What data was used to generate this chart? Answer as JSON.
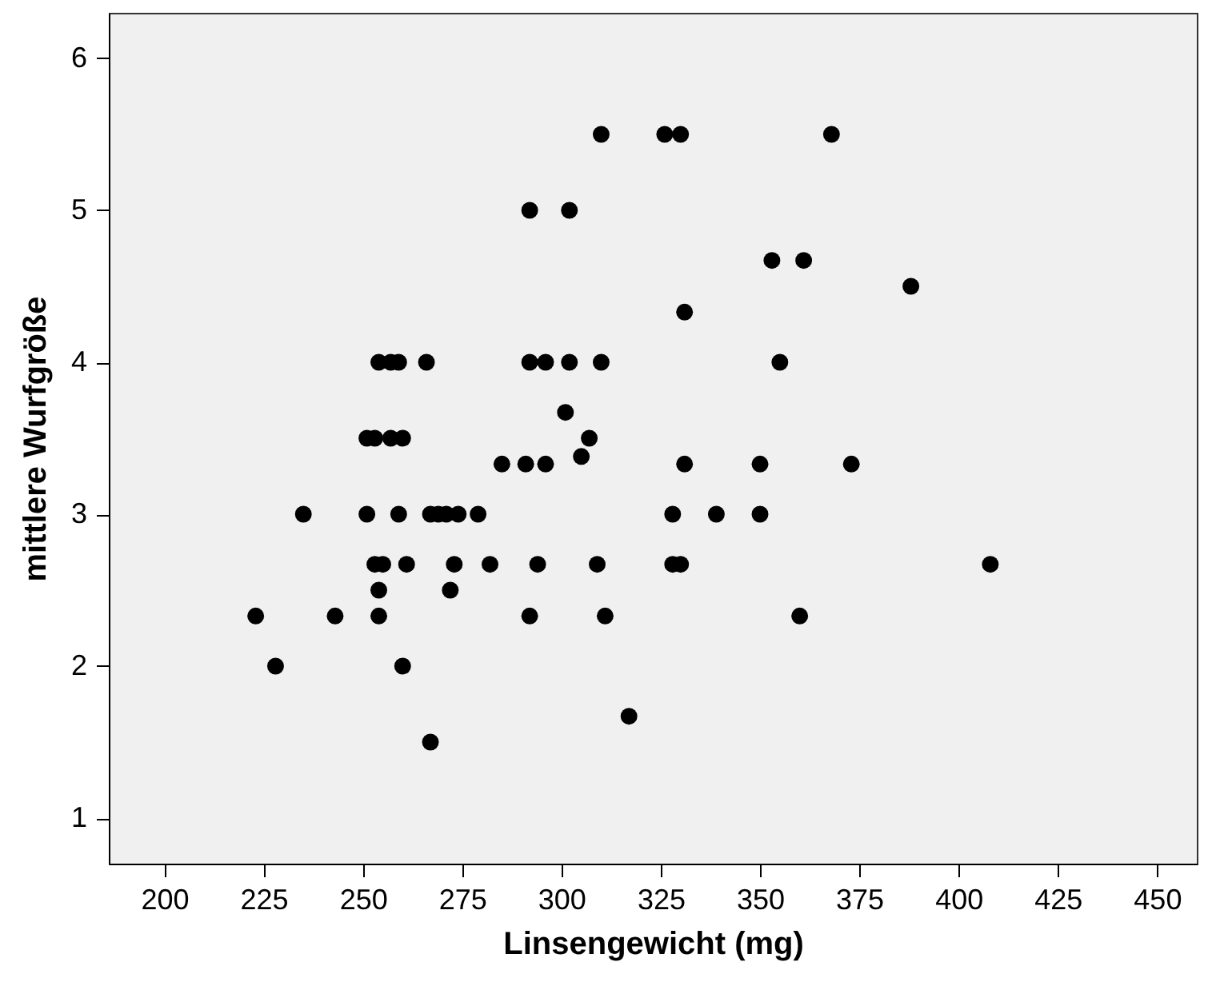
{
  "chart_data": {
    "type": "scatter",
    "xlabel": "Linsengewicht (mg)",
    "ylabel": "mittlere Wurfgröße",
    "x": [
      310,
      326,
      330,
      368,
      292,
      302,
      353,
      361,
      388,
      331,
      254,
      257,
      259,
      266,
      292,
      296,
      302,
      310,
      355,
      301,
      251,
      253,
      257,
      260,
      307,
      305,
      285,
      291,
      296,
      331,
      350,
      373,
      235,
      251,
      259,
      267,
      269,
      271,
      274,
      279,
      328,
      339,
      350,
      253,
      255,
      261,
      273,
      282,
      294,
      309,
      328,
      330,
      408,
      254,
      272,
      223,
      243,
      254,
      292,
      311,
      360,
      228,
      260,
      317,
      267
    ],
    "series": [
      {
        "color": "#000000",
        "values": [
          5.5,
          5.5,
          5.5,
          5.5,
          5,
          5,
          4.67,
          4.67,
          4.5,
          4.33,
          4,
          4,
          4,
          4,
          4,
          4,
          4,
          4,
          4,
          3.67,
          3.5,
          3.5,
          3.5,
          3.5,
          3.5,
          3.38,
          3.33,
          3.33,
          3.33,
          3.33,
          3.33,
          3.33,
          3,
          3,
          3,
          3,
          3,
          3,
          3,
          3,
          3,
          3,
          3,
          2.67,
          2.67,
          2.67,
          2.67,
          2.67,
          2.67,
          2.67,
          2.67,
          2.67,
          2.67,
          2.5,
          2.5,
          2.33,
          2.33,
          2.33,
          2.33,
          2.33,
          2.33,
          2,
          2,
          1.67,
          1.5
        ]
      }
    ],
    "xlim": [
      186,
      460
    ],
    "ylim": [
      0.7,
      6.3
    ],
    "xticks": [
      200,
      225,
      250,
      275,
      300,
      325,
      350,
      375,
      400,
      425,
      450
    ],
    "yticks": [
      1,
      2,
      3,
      4,
      5,
      6
    ],
    "grid": false,
    "marker": "circle"
  }
}
